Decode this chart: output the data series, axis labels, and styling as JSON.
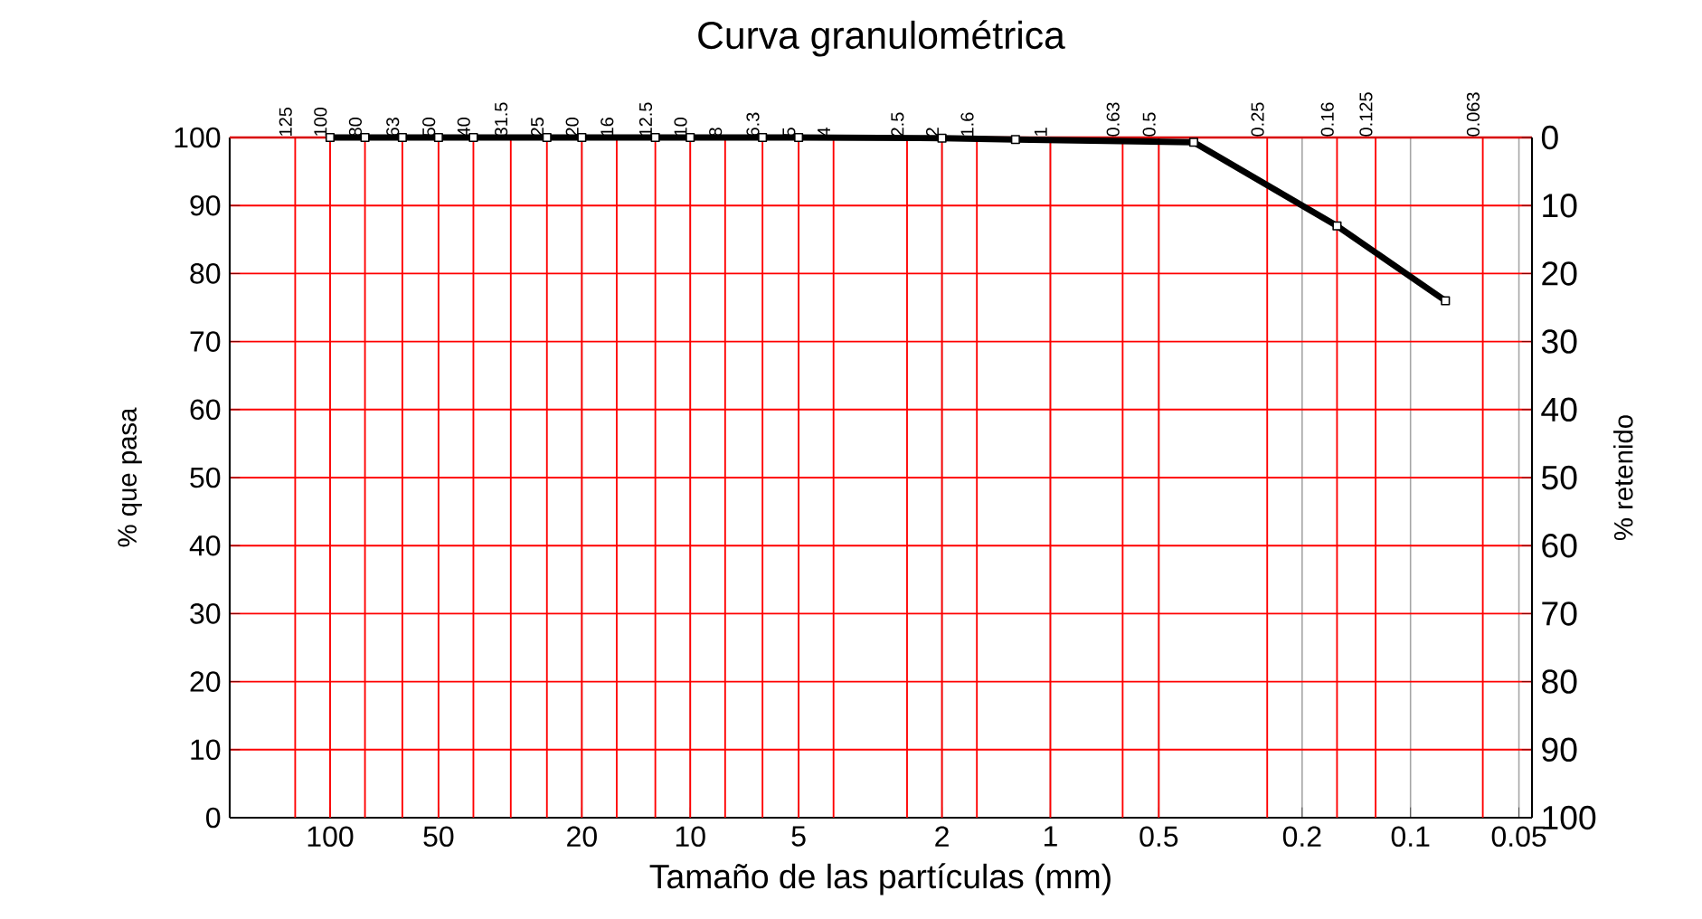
{
  "chart_data": {
    "type": "line",
    "title": "Curva granulométrica",
    "xlabel": "Tamaño de las partículas (mm)",
    "ylabel": "% que pasa",
    "y2label": "% retenido",
    "log": "x",
    "grid": true,
    "marker": "square",
    "line_style": "solid",
    "xlim": [
      190,
      0.046
    ],
    "xticks": [
      100,
      50,
      20,
      10,
      5,
      2,
      1,
      0.5,
      0.2,
      0.1,
      0.05
    ],
    "ylim": [
      0,
      100
    ],
    "yticks": [
      0,
      10,
      20,
      30,
      40,
      50,
      60,
      70,
      80,
      90,
      100
    ],
    "y2lim": [
      100,
      0
    ],
    "y2ticks": [
      0,
      10,
      20,
      30,
      40,
      50,
      60,
      70,
      80,
      90,
      100
    ],
    "ref_lines": [
      {
        "axis": "x",
        "value": 125,
        "label": "125",
        "color": "#ff0000"
      },
      {
        "axis": "x",
        "value": 100,
        "label": "100",
        "color": "#ff0000"
      },
      {
        "axis": "x",
        "value": 80,
        "label": "80",
        "color": "#ff0000"
      },
      {
        "axis": "x",
        "value": 63,
        "label": "63",
        "color": "#ff0000"
      },
      {
        "axis": "x",
        "value": 50,
        "label": "50",
        "color": "#ff0000"
      },
      {
        "axis": "x",
        "value": 40,
        "label": "40",
        "color": "#ff0000"
      },
      {
        "axis": "x",
        "value": 31.5,
        "label": "31.5",
        "color": "#ff0000"
      },
      {
        "axis": "x",
        "value": 25,
        "label": "25",
        "color": "#ff0000"
      },
      {
        "axis": "x",
        "value": 20,
        "label": "20",
        "color": "#ff0000"
      },
      {
        "axis": "x",
        "value": 16,
        "label": "16",
        "color": "#ff0000"
      },
      {
        "axis": "x",
        "value": 12.5,
        "label": "12.5",
        "color": "#ff0000"
      },
      {
        "axis": "x",
        "value": 10,
        "label": "10",
        "color": "#ff0000"
      },
      {
        "axis": "x",
        "value": 8,
        "label": "8",
        "color": "#ff0000"
      },
      {
        "axis": "x",
        "value": 6.3,
        "label": "6.3",
        "color": "#ff0000"
      },
      {
        "axis": "x",
        "value": 5,
        "label": "5",
        "color": "#ff0000"
      },
      {
        "axis": "x",
        "value": 4,
        "label": "4",
        "color": "#ff0000"
      },
      {
        "axis": "x",
        "value": 2.5,
        "label": "2.5",
        "color": "#ff0000"
      },
      {
        "axis": "x",
        "value": 2,
        "label": "2",
        "color": "#ff0000"
      },
      {
        "axis": "x",
        "value": 1.6,
        "label": "1.6",
        "color": "#ff0000"
      },
      {
        "axis": "x",
        "value": 1,
        "label": "1",
        "color": "#ff0000"
      },
      {
        "axis": "x",
        "value": 0.63,
        "label": "0.63",
        "color": "#ff0000"
      },
      {
        "axis": "x",
        "value": 0.5,
        "label": "0.5",
        "color": "#ff0000"
      },
      {
        "axis": "x",
        "value": 0.25,
        "label": "0.25",
        "color": "#ff0000"
      },
      {
        "axis": "x",
        "value": 0.16,
        "label": "0.16",
        "color": "#ff0000"
      },
      {
        "axis": "x",
        "value": 0.125,
        "label": "0.125",
        "color": "#ff0000"
      },
      {
        "axis": "x",
        "value": 0.063,
        "label": "0.063",
        "color": "#ff0000"
      }
    ],
    "series": [
      {
        "color": "#000000",
        "x": [
          100,
          80,
          63,
          50,
          40,
          25,
          20,
          12.5,
          10,
          6.3,
          5,
          2,
          1.25,
          0.4,
          0.16,
          0.08
        ],
        "values": [
          100,
          100,
          100,
          100,
          100,
          100,
          100,
          100,
          100,
          100,
          100,
          99.9,
          99.7,
          99.3,
          87,
          76
        ]
      }
    ]
  }
}
